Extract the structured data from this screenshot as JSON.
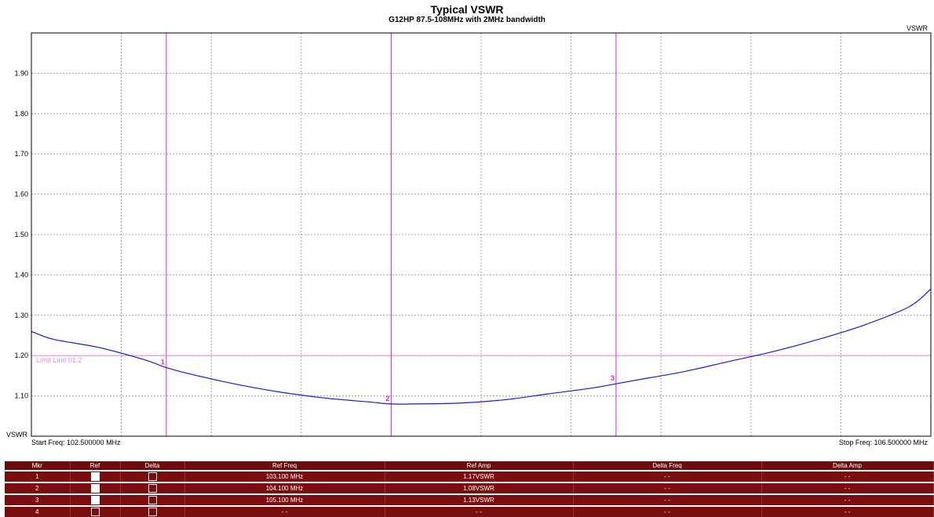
{
  "chart_data": {
    "type": "line",
    "title": "Typical VSWR",
    "subtitle": "G12HP 87.5-108MHz with 2MHz bandwidth",
    "ylabel": "VSWR",
    "y_unit_bottom": "VSWR",
    "start_freq_label": "Start Freq: 102.500000 MHz",
    "stop_freq_label": "Stop Freq: 106.500000 MHz",
    "xlim": [
      102.5,
      106.5
    ],
    "ylim": [
      1.0,
      2.0
    ],
    "yticks": [
      "1.10",
      "1.20",
      "1.30",
      "1.40",
      "1.50",
      "1.60",
      "1.70",
      "1.80",
      "1.90"
    ],
    "grid": true,
    "x_grid_divisions": 10,
    "colors": {
      "trace": "#1a1adc",
      "marker": "#dd22dd",
      "limit": "#ee88ee",
      "grid": "#a0a0a0"
    },
    "series": [
      {
        "x": [
          102.5,
          102.6,
          102.8,
          103.0,
          103.1,
          103.2,
          103.4,
          103.6,
          103.8,
          104.0,
          104.1,
          104.2,
          104.4,
          104.6,
          104.8,
          105.0,
          105.1,
          105.2,
          105.4,
          105.6,
          105.8,
          106.0,
          106.2,
          106.4,
          106.5
        ],
        "y": [
          1.26,
          1.24,
          1.22,
          1.19,
          1.17,
          1.155,
          1.13,
          1.11,
          1.095,
          1.085,
          1.08,
          1.08,
          1.082,
          1.09,
          1.105,
          1.12,
          1.13,
          1.14,
          1.16,
          1.185,
          1.21,
          1.24,
          1.275,
          1.32,
          1.365
        ]
      }
    ],
    "limit_line": {
      "label": "Limit Line 01.2",
      "value": 1.2
    },
    "markers": [
      {
        "label": "1",
        "freq": 103.1,
        "vswr": 1.17
      },
      {
        "label": "2",
        "freq": 104.1,
        "vswr": 1.08
      },
      {
        "label": "3",
        "freq": 105.1,
        "vswr": 1.13
      }
    ]
  },
  "table": {
    "headers": [
      "Mkr",
      "Ref",
      "Delta",
      "Ref Freq",
      "Ref Amp",
      "Delta Freq",
      "Delta Amp"
    ],
    "rows": [
      {
        "mkr": "1",
        "ref": true,
        "delta": false,
        "ref_freq": "103.100 MHz",
        "ref_amp": "1.17VSWR",
        "delta_freq": "- -",
        "delta_amp": "- -"
      },
      {
        "mkr": "2",
        "ref": true,
        "delta": false,
        "ref_freq": "104.100 MHz",
        "ref_amp": "1.08VSWR",
        "delta_freq": "- -",
        "delta_amp": "- -"
      },
      {
        "mkr": "3",
        "ref": true,
        "delta": false,
        "ref_freq": "105.100 MHz",
        "ref_amp": "1.13VSWR",
        "delta_freq": "- -",
        "delta_amp": "- -"
      },
      {
        "mkr": "4",
        "ref": false,
        "delta": false,
        "ref_freq": "- -",
        "ref_amp": "- -",
        "delta_freq": "- -",
        "delta_amp": "- -"
      }
    ]
  }
}
